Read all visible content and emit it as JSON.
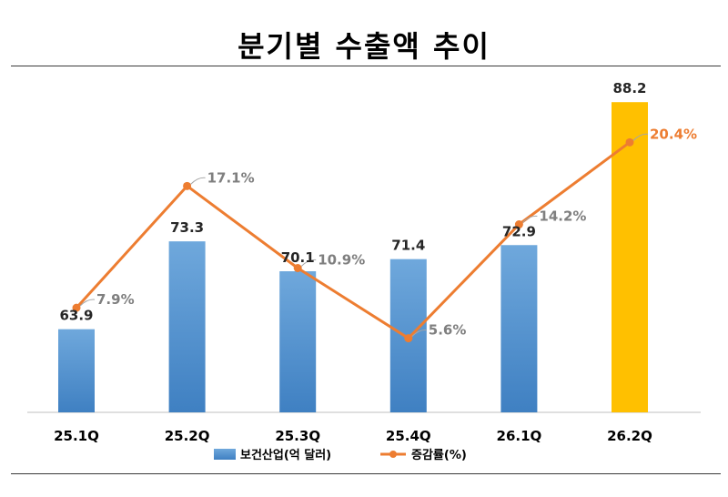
{
  "title": "분기별 수출액 추이",
  "chart_data": {
    "type": "bar",
    "categories": [
      "25.1Q",
      "25.2Q",
      "25.3Q",
      "25.4Q",
      "26.1Q",
      "26.2Q"
    ],
    "series": [
      {
        "name": "보건산업(억 달러)",
        "type": "bar",
        "values": [
          63.9,
          73.3,
          70.1,
          71.4,
          72.9,
          88.2
        ],
        "value_labels": [
          "63.9",
          "73.3",
          "70.1",
          "71.4",
          "72.9",
          "88.2"
        ],
        "color": "#5B9BD5",
        "highlight_color": "#FFC000",
        "highlight_index": 5
      },
      {
        "name": "증감률(%)",
        "type": "line",
        "values": [
          7.9,
          17.1,
          10.9,
          5.6,
          14.2,
          20.4
        ],
        "value_labels": [
          "7.9%",
          "17.1%",
          "10.9%",
          "5.6%",
          "14.2%",
          "20.4%"
        ],
        "color": "#ED7D31"
      }
    ],
    "xlabel": "",
    "ylabel": "",
    "bar_ylim": [
      55,
      89
    ],
    "line_ylim": [
      0,
      24
    ],
    "grid": false,
    "legend_position": "bottom"
  }
}
